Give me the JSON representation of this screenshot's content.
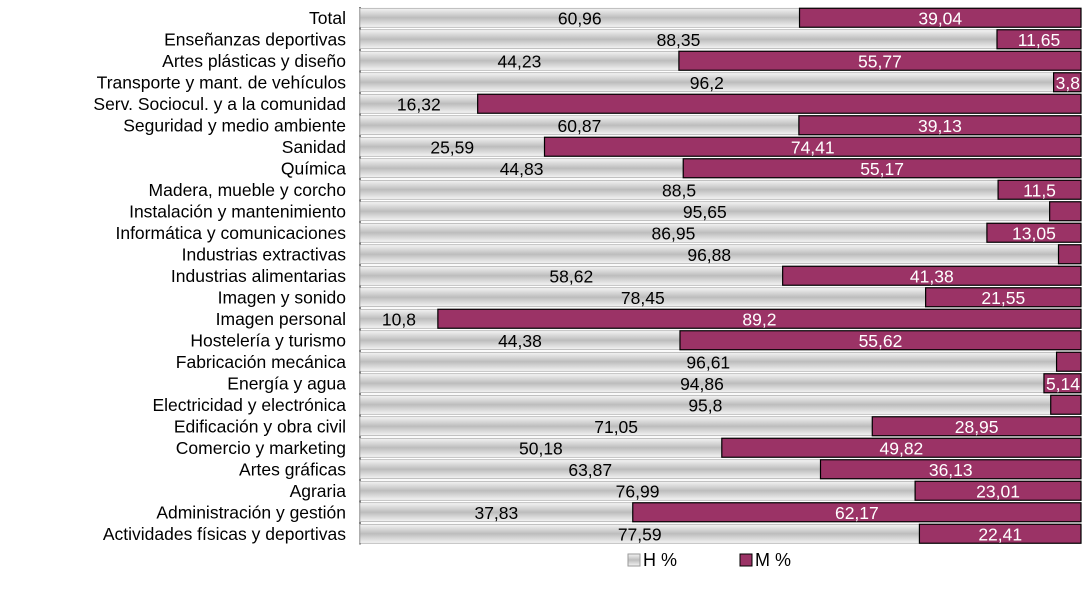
{
  "chart_data": {
    "type": "bar",
    "orientation": "horizontal",
    "stacked": true,
    "normalized_to": 100,
    "xlim": [
      0,
      100
    ],
    "grid": false,
    "legend_position": "bottom",
    "categories": [
      "Total",
      "Enseñanzas deportivas",
      "Artes plásticas y diseño",
      "Transporte y mant. de vehículos",
      "Serv. Sociocul. y a la comunidad",
      "Seguridad y medio ambiente",
      "Sanidad",
      "Química",
      "Madera, mueble y corcho",
      "Instalación y mantenimiento",
      "Informática y comunicaciones",
      "Industrias extractivas",
      "Industrias alimentarias",
      "Imagen y sonido",
      "Imagen personal",
      "Hostelería y turismo",
      "Fabricación mecánica",
      "Energía y agua",
      "Electricidad y electrónica",
      "Edificación y obra civil",
      "Comercio y marketing",
      "Artes gráficas",
      "Agraria",
      "Administración y gestión",
      "Actividades físicas y deportivas"
    ],
    "series": [
      {
        "name": "H %",
        "color": "#d9d9d9",
        "values": [
          60.96,
          88.35,
          44.23,
          96.2,
          16.32,
          60.87,
          25.59,
          44.83,
          88.5,
          95.65,
          86.95,
          96.88,
          58.62,
          78.45,
          10.8,
          44.38,
          96.61,
          94.86,
          95.8,
          71.05,
          50.18,
          63.87,
          76.99,
          37.83,
          77.59
        ],
        "labels": [
          "60,96",
          "88,35",
          "44,23",
          "96,2",
          "16,32",
          "60,87",
          "25,59",
          "44,83",
          "88,5",
          "95,65",
          "86,95",
          "96,88",
          "58,62",
          "78,45",
          "10,8",
          "44,38",
          "96,61",
          "94,86",
          "95,8",
          "71,05",
          "50,18",
          "63,87",
          "76,99",
          "37,83",
          "77,59"
        ]
      },
      {
        "name": "M %",
        "color": "#9b3366",
        "values": [
          39.04,
          11.65,
          55.77,
          3.8,
          83.68,
          39.13,
          74.41,
          55.17,
          11.5,
          4.35,
          13.05,
          3.12,
          41.38,
          21.55,
          89.2,
          55.62,
          3.39,
          5.14,
          4.2,
          28.95,
          49.82,
          36.13,
          23.01,
          62.17,
          22.41
        ],
        "labels": [
          "39,04",
          "11,65",
          "55,77",
          "3,8",
          "",
          "39,13",
          "74,41",
          "55,17",
          "11,5",
          "",
          "13,05",
          "",
          "41,38",
          "21,55",
          "89,2",
          "55,62",
          "",
          "5,14",
          "",
          "28,95",
          "49,82",
          "36,13",
          "23,01",
          "62,17",
          "22,41"
        ]
      }
    ]
  }
}
